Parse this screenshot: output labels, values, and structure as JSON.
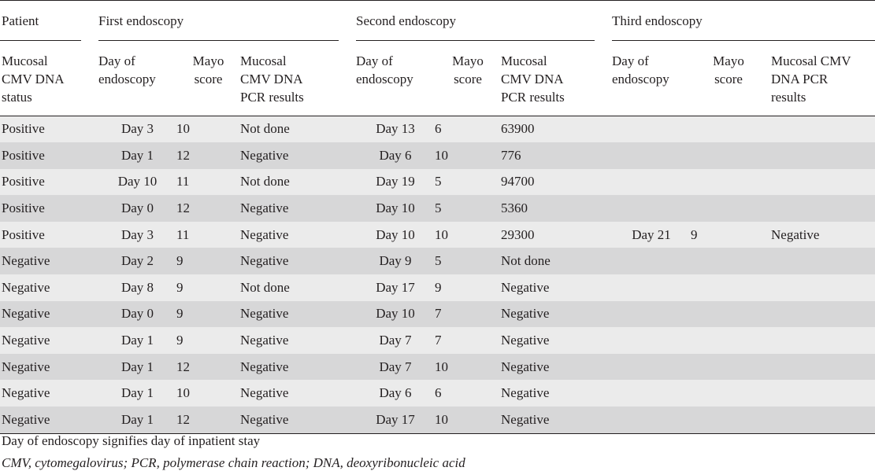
{
  "group_headers": {
    "patient": "Patient",
    "first": "First endoscopy",
    "second": "Second endoscopy",
    "third": "Third endoscopy"
  },
  "sub_headers": {
    "status_lines": [
      "Mucosal",
      "CMV DNA",
      "status"
    ],
    "day_lines": [
      "Day of",
      "endoscopy"
    ],
    "mayo_lines": [
      "Mayo",
      "score"
    ],
    "pcr_lines": [
      "Mucosal",
      "CMV DNA",
      "PCR results"
    ],
    "third_pcr_lines": [
      "Mucosal CMV",
      "DNA PCR",
      "results"
    ]
  },
  "rows": [
    [
      "Positive",
      "Day 3",
      "10",
      "Not done",
      "Day 13",
      "6",
      "63900",
      "",
      "",
      ""
    ],
    [
      "Positive",
      "Day 1",
      "12",
      "Negative",
      "Day 6",
      "10",
      "776",
      "",
      "",
      ""
    ],
    [
      "Positive",
      "Day 10",
      "11",
      "Not done",
      "Day 19",
      "5",
      "94700",
      "",
      "",
      ""
    ],
    [
      "Positive",
      "Day 0",
      "12",
      "Negative",
      "Day 10",
      "5",
      "5360",
      "",
      "",
      ""
    ],
    [
      "Positive",
      "Day 3",
      "11",
      "Negative",
      "Day 10",
      "10",
      "29300",
      "Day 21",
      "9",
      "Negative"
    ],
    [
      "Negative",
      "Day 2",
      "9",
      "Negative",
      "Day 9",
      "5",
      "Not done",
      "",
      "",
      ""
    ],
    [
      "Negative",
      "Day 8",
      "9",
      "Not done",
      "Day 17",
      "9",
      "Negative",
      "",
      "",
      ""
    ],
    [
      "Negative",
      "Day 0",
      "9",
      "Negative",
      "Day 10",
      "7",
      "Negative",
      "",
      "",
      ""
    ],
    [
      "Negative",
      "Day 1",
      "9",
      "Negative",
      "Day 7",
      "7",
      "Negative",
      "",
      "",
      ""
    ],
    [
      "Negative",
      "Day 1",
      "12",
      "Negative",
      "Day 7",
      "10",
      "Negative",
      "",
      "",
      ""
    ],
    [
      "Negative",
      "Day 1",
      "10",
      "Negative",
      "Day 6",
      "6",
      "Negative",
      "",
      "",
      ""
    ],
    [
      "Negative",
      "Day 1",
      "12",
      "Negative",
      "Day 17",
      "10",
      "Negative",
      "",
      "",
      ""
    ]
  ],
  "footnotes": {
    "note1": "Day of endoscopy signifies day of inpatient stay",
    "note2": "CMV, cytomegalovirus; PCR, polymerase chain reaction; DNA, deoxyribonucleic acid"
  },
  "colors": {
    "row_light": "#ebebeb",
    "row_dark": "#d7d7d8",
    "rule": "#231f20"
  }
}
